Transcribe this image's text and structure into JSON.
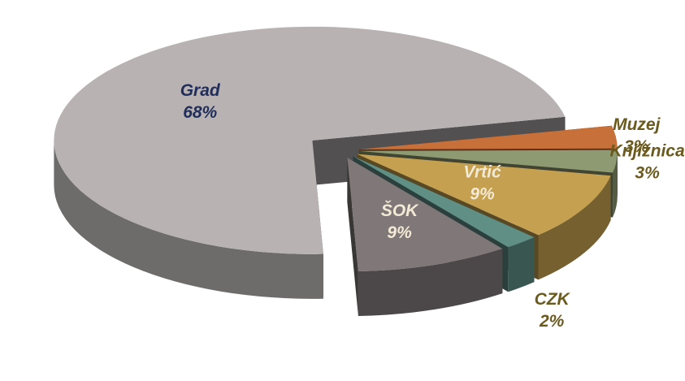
{
  "chart_data": {
    "type": "pie",
    "categories": [
      "Muzej",
      "Knjižnica",
      "Vrtić",
      "CZK",
      "ŠOK",
      "Grad"
    ],
    "values": [
      3,
      3,
      9,
      2,
      9,
      68
    ],
    "value_labels": [
      "3%",
      "3%",
      "9%",
      "2%",
      "9%",
      "68%"
    ],
    "colors": [
      "#c8703a",
      "#8e9a72",
      "#c4a050",
      "#5f8f85",
      "#7f7778",
      "#b8b2b3"
    ]
  }
}
